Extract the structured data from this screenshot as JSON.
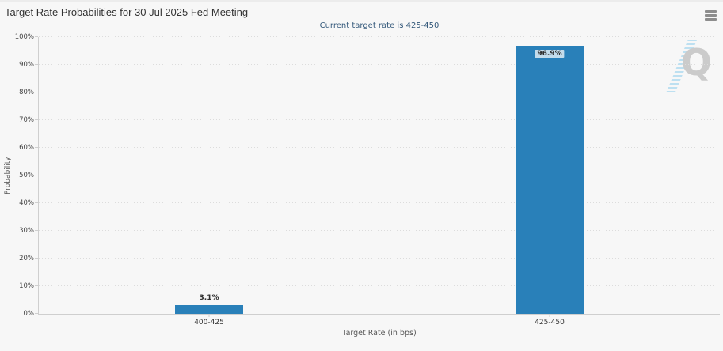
{
  "header": {
    "title": "Target Rate Probabilities for 30 Jul 2025 Fed Meeting",
    "menu_icon": "hamburger-icon"
  },
  "chart_data": {
    "type": "bar",
    "title": "Target Rate Probabilities for 30 Jul 2025 Fed Meeting",
    "subtitle": "Current target rate is 425-450",
    "categories": [
      "400-425",
      "425-450"
    ],
    "values": [
      3.1,
      96.9
    ],
    "value_labels": [
      "3.1%",
      "96.9%"
    ],
    "label_placement": [
      "above",
      "inside"
    ],
    "xlabel": "Target Rate (in bps)",
    "ylabel": "Probability",
    "ylim": [
      0,
      100
    ],
    "ytick_step": 10,
    "ytick_labels": [
      "0%",
      "10%",
      "20%",
      "30%",
      "40%",
      "50%",
      "60%",
      "70%",
      "80%",
      "90%",
      "100%"
    ],
    "grid": "horizontal-dotted",
    "legend": "none",
    "bar_color": "#2980b9"
  },
  "colors": {
    "bar": "#2980b9",
    "subtitle_text": "#33587a",
    "axis_line": "#cfcfcf",
    "watermark_gray": "#cbcbcb",
    "watermark_blue": "#b3dcf0"
  },
  "watermark": {
    "letter": "Q"
  }
}
